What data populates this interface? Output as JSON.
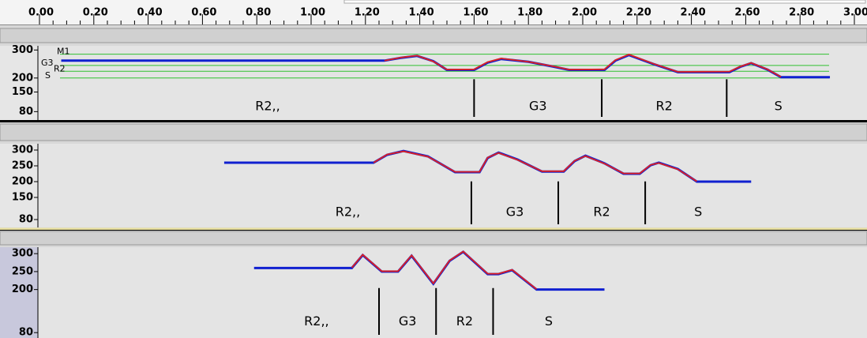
{
  "chart_data": [
    {
      "type": "line",
      "xlim": [
        0,
        3
      ],
      "ylim": [
        50,
        315
      ],
      "xticks": [
        {
          "value": 0,
          "label": "0.00"
        },
        {
          "value": 0.2,
          "label": "0.20"
        },
        {
          "value": 0.4,
          "label": "0.40"
        },
        {
          "value": 0.6,
          "label": "0.60"
        },
        {
          "value": 0.8,
          "label": "0.80"
        },
        {
          "value": 1,
          "label": "1.00"
        },
        {
          "value": 1.2,
          "label": "1.20"
        },
        {
          "value": 1.4,
          "label": "1.40"
        },
        {
          "value": 1.6,
          "label": "1.60"
        },
        {
          "value": 1.8,
          "label": "1.80"
        },
        {
          "value": 2,
          "label": "2.00"
        },
        {
          "value": 2.2,
          "label": "2.20"
        },
        {
          "value": 2.4,
          "label": "2.40"
        },
        {
          "value": 2.6,
          "label": "2.60"
        },
        {
          "value": 2.8,
          "label": "2.80"
        },
        {
          "value": 3,
          "label": "3.00"
        }
      ],
      "yticks": [
        300,
        200,
        150,
        80
      ],
      "x": [
        0.08,
        1.27,
        1.33,
        1.39,
        1.45,
        1.5,
        1.6,
        1.65,
        1.7,
        1.8,
        1.89,
        1.95,
        2.08,
        2.12,
        2.17,
        2.26,
        2.35,
        2.54,
        2.58,
        2.62,
        2.68,
        2.73,
        2.91
      ],
      "series": [
        {
          "color": "#1020d0",
          "values": [
            262,
            262,
            272,
            279,
            260,
            229,
            229,
            255,
            268,
            258,
            241,
            229,
            229,
            262,
            282,
            250,
            221,
            221,
            240,
            253,
            230,
            203,
            203
          ]
        },
        {
          "color": "#e02020",
          "values": [
            null,
            262,
            273,
            280,
            259,
            230,
            231,
            257,
            270,
            258,
            242,
            230,
            231,
            264,
            284,
            251,
            222,
            223,
            241,
            254,
            231,
            204,
            null
          ]
        }
      ],
      "reference_lines": [
        {
          "name": "M1",
          "value": 285
        },
        {
          "name": "G3",
          "value": 245
        },
        {
          "name": "R2",
          "value": 224
        },
        {
          "name": "S",
          "value": 200
        }
      ],
      "boundaries": [
        1.6,
        2.07,
        2.53
      ],
      "labels": [
        "R2,,",
        "G3",
        "R2",
        "S"
      ]
    },
    {
      "type": "line",
      "xlim": [
        0,
        3
      ],
      "ylim": [
        55,
        320
      ],
      "yticks": [
        300,
        250,
        200,
        150,
        80
      ],
      "x": [
        0.68,
        1.23,
        1.28,
        1.34,
        1.43,
        1.53,
        1.62,
        1.65,
        1.69,
        1.76,
        1.85,
        1.93,
        1.97,
        2.01,
        2.08,
        2.15,
        2.21,
        2.25,
        2.28,
        2.35,
        2.42,
        2.62
      ],
      "series": [
        {
          "color": "#1020d0",
          "values": [
            260,
            260,
            285,
            297,
            280,
            230,
            230,
            275,
            292,
            270,
            232,
            232,
            265,
            282,
            258,
            225,
            225,
            252,
            260,
            240,
            200,
            200
          ]
        },
        {
          "color": "#e02020",
          "values": [
            null,
            260,
            286,
            296,
            279,
            231,
            231,
            276,
            291,
            269,
            233,
            233,
            266,
            281,
            257,
            226,
            226,
            253,
            259,
            239,
            201,
            null
          ]
        }
      ],
      "boundaries": [
        1.59,
        1.91,
        2.23
      ],
      "labels": [
        "R2,,",
        "G3",
        "R2",
        "S"
      ]
    },
    {
      "type": "line",
      "xlim": [
        0,
        3
      ],
      "ylim": [
        65,
        318
      ],
      "yticks": [
        300,
        250,
        200,
        80
      ],
      "x": [
        0.79,
        1.15,
        1.19,
        1.26,
        1.32,
        1.37,
        1.45,
        1.51,
        1.56,
        1.65,
        1.69,
        1.74,
        1.83,
        2.08
      ],
      "series": [
        {
          "color": "#1020d0",
          "values": [
            260,
            260,
            296,
            250,
            250,
            294,
            216,
            280,
            305,
            243,
            243,
            254,
            200,
            200
          ]
        },
        {
          "color": "#e02020",
          "values": [
            null,
            261,
            297,
            251,
            251,
            295,
            217,
            281,
            306,
            244,
            244,
            255,
            201,
            null
          ]
        }
      ],
      "boundaries": [
        1.25,
        1.46,
        1.67
      ],
      "labels": [
        "R2,,",
        "G3",
        "R2",
        "S"
      ]
    }
  ]
}
